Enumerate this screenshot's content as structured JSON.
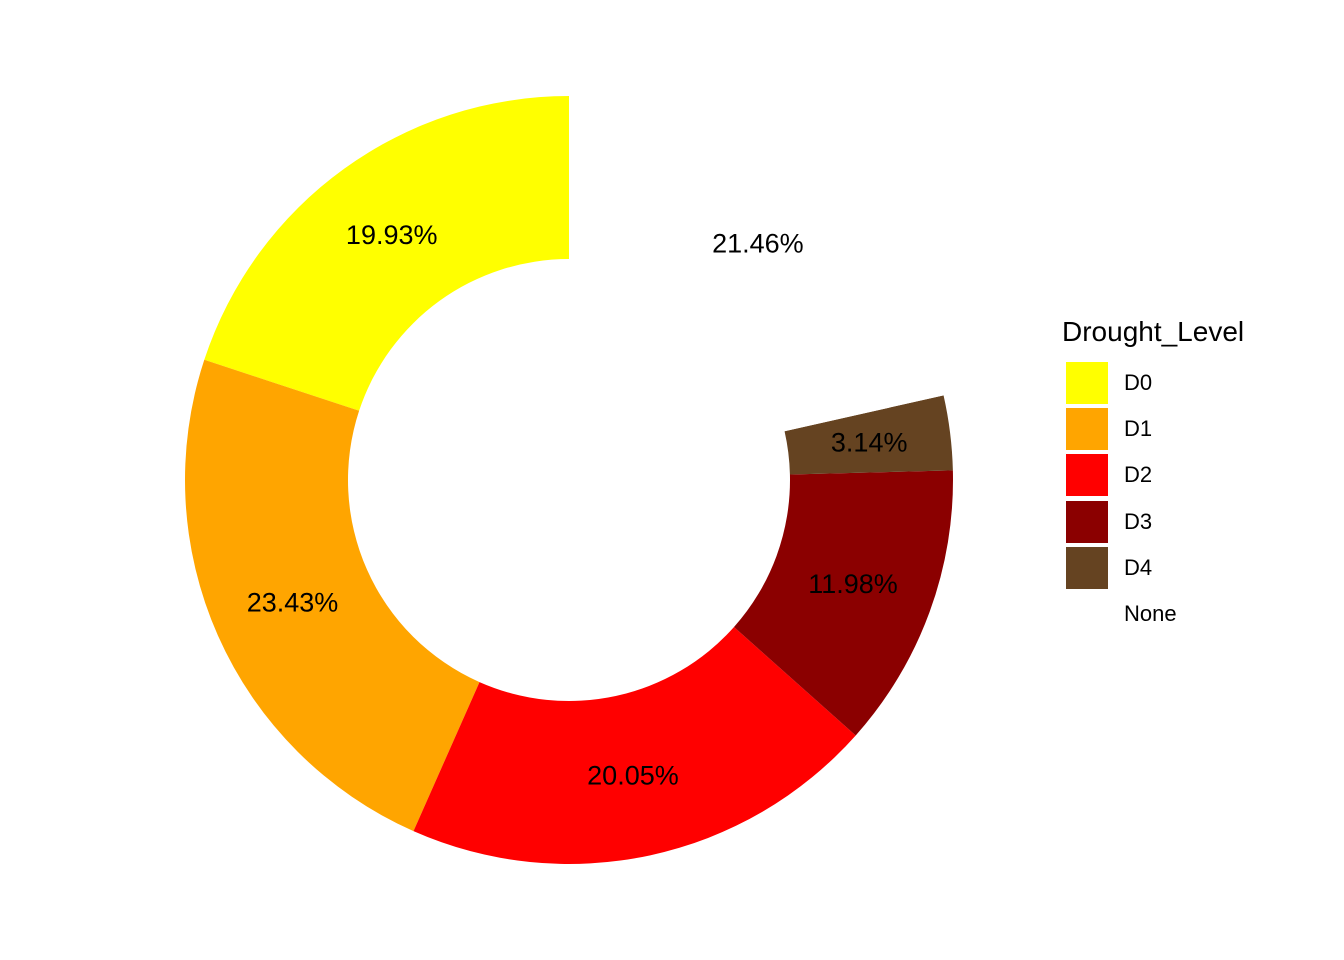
{
  "chart_data": {
    "type": "pie",
    "donut": true,
    "categories": [
      "D0",
      "D1",
      "D2",
      "D3",
      "D4",
      "None"
    ],
    "values": [
      19.93,
      23.43,
      20.05,
      11.98,
      3.14,
      21.46
    ],
    "labels": [
      "19.93%",
      "23.43%",
      "20.05%",
      "11.98%",
      "3.14%",
      "21.46%"
    ],
    "colors": [
      "#FFFF00",
      "#FFA500",
      "#FF0000",
      "#8B0000",
      "#654321",
      "#FFFFFF"
    ],
    "direction": "counterclockwise",
    "start_angle": "top"
  },
  "legend": {
    "title": "Drought_Level",
    "placement": "right"
  }
}
